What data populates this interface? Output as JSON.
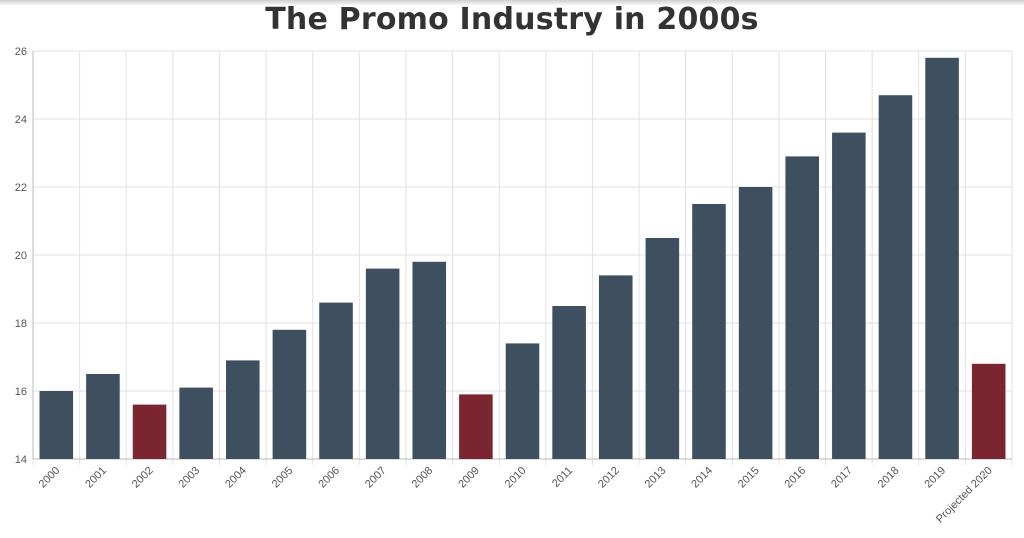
{
  "chart_data": {
    "type": "bar",
    "title": "The Promo Industry in 2000s",
    "xlabel": "",
    "ylabel": "",
    "ylim": [
      14,
      26
    ],
    "yticks": [
      14,
      16,
      18,
      20,
      22,
      24,
      26
    ],
    "grid": true,
    "categories": [
      "2000",
      "2001",
      "2002",
      "2003",
      "2004",
      "2005",
      "2006",
      "2007",
      "2008",
      "2009",
      "2010",
      "2011",
      "2012",
      "2013",
      "2014",
      "2015",
      "2016",
      "2017",
      "2018",
      "2019",
      "Projected 2020"
    ],
    "values": [
      16.0,
      16.5,
      15.6,
      16.1,
      16.9,
      17.8,
      18.6,
      19.6,
      19.8,
      15.9,
      17.4,
      18.5,
      19.4,
      20.5,
      21.5,
      22.0,
      22.9,
      23.6,
      24.7,
      25.8,
      16.8
    ],
    "highlight": [
      false,
      false,
      true,
      false,
      false,
      false,
      false,
      false,
      false,
      true,
      false,
      false,
      false,
      false,
      false,
      false,
      false,
      false,
      false,
      false,
      true
    ],
    "colors": {
      "bar": "#3e5060",
      "highlight": "#7b2530",
      "grid": "#e2e2e2",
      "axis": "#bbbbbb"
    }
  }
}
